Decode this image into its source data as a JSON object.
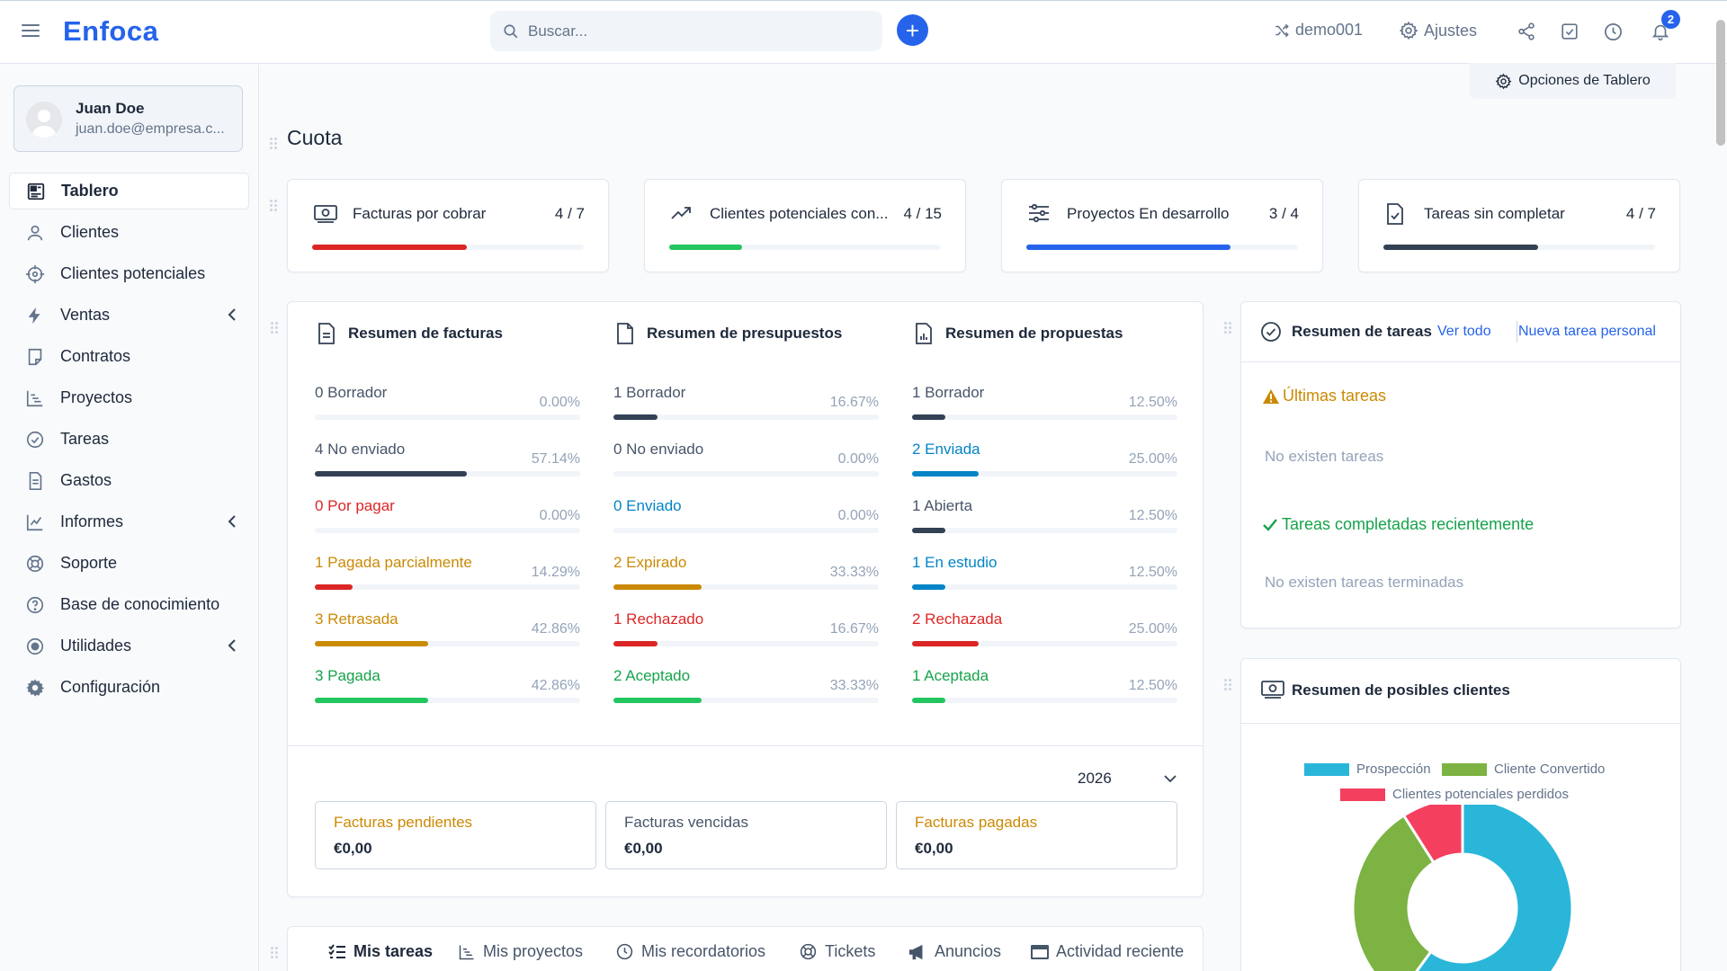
{
  "app": {
    "logo": "Enfoca"
  },
  "search": {
    "placeholder": "Buscar..."
  },
  "topbar": {
    "user_switch": "demo001",
    "settings": "Ajustes",
    "notifications_count": "2"
  },
  "user": {
    "name": "Juan Doe",
    "email": "juan.doe@empresa.c..."
  },
  "sidebar": {
    "items": [
      {
        "label": "Tablero",
        "icon": "dashboard-icon",
        "active": true
      },
      {
        "label": "Clientes",
        "icon": "user-icon"
      },
      {
        "label": "Clientes potenciales",
        "icon": "crosshair-icon"
      },
      {
        "label": "Ventas",
        "icon": "bolt-icon",
        "has_submenu": true
      },
      {
        "label": "Contratos",
        "icon": "contract-icon"
      },
      {
        "label": "Proyectos",
        "icon": "chart-steps-icon"
      },
      {
        "label": "Tareas",
        "icon": "check-circle-icon"
      },
      {
        "label": "Gastos",
        "icon": "document-icon"
      },
      {
        "label": "Informes",
        "icon": "line-chart-icon",
        "has_submenu": true
      },
      {
        "label": "Soporte",
        "icon": "lifebuoy-icon"
      },
      {
        "label": "Base de conocimiento",
        "icon": "question-circle-icon"
      },
      {
        "label": "Utilidades",
        "icon": "radio-icon",
        "has_submenu": true
      },
      {
        "label": "Configuración",
        "icon": "gear-icon"
      }
    ]
  },
  "dashboard": {
    "options_button": "Opciones de Tablero",
    "quota_title": "Cuota",
    "quota_cards": [
      {
        "label": "Facturas por cobrar",
        "count": "4 / 7",
        "fraction": 0.571,
        "color": "#dc2626"
      },
      {
        "label": "Clientes potenciales con...",
        "count": "4 / 15",
        "fraction": 0.267,
        "color": "#22c55e"
      },
      {
        "label": "Proyectos En desarrollo",
        "count": "3 / 4",
        "fraction": 0.75,
        "color": "#2563eb"
      },
      {
        "label": "Tareas sin completar",
        "count": "4 / 7",
        "fraction": 0.571,
        "color": "#334155"
      }
    ]
  },
  "summaries": {
    "invoices": {
      "title": "Resumen de facturas",
      "rows": [
        {
          "label": "0 Borrador",
          "pct": "0.00%",
          "fraction": 0.0,
          "color": "#334155",
          "text_color": "#475569"
        },
        {
          "label": "4 No enviado",
          "pct": "57.14%",
          "fraction": 0.5714,
          "color": "#334155",
          "text_color": "#475569"
        },
        {
          "label": "0 Por pagar",
          "pct": "0.00%",
          "fraction": 0.0,
          "color": "#dc2626",
          "text_color": "#dc2626"
        },
        {
          "label": "1 Pagada parcialmente",
          "pct": "14.29%",
          "fraction": 0.1429,
          "color": "#dc2626",
          "text_color": "#ca8a04"
        },
        {
          "label": "3 Retrasada",
          "pct": "42.86%",
          "fraction": 0.4286,
          "color": "#ca8a04",
          "text_color": "#ca8a04"
        },
        {
          "label": "3 Pagada",
          "pct": "42.86%",
          "fraction": 0.4286,
          "color": "#22c55e",
          "text_color": "#16a34a"
        }
      ]
    },
    "estimates": {
      "title": "Resumen de presupuestos",
      "rows": [
        {
          "label": "1 Borrador",
          "pct": "16.67%",
          "fraction": 0.1667,
          "color": "#334155",
          "text_color": "#475569"
        },
        {
          "label": "0 No enviado",
          "pct": "0.00%",
          "fraction": 0.0,
          "color": "#334155",
          "text_color": "#475569"
        },
        {
          "label": "0 Enviado",
          "pct": "0.00%",
          "fraction": 0.0,
          "color": "#0284c7",
          "text_color": "#0284c7"
        },
        {
          "label": "2 Expirado",
          "pct": "33.33%",
          "fraction": 0.3333,
          "color": "#ca8a04",
          "text_color": "#ca8a04"
        },
        {
          "label": "1 Rechazado",
          "pct": "16.67%",
          "fraction": 0.1667,
          "color": "#dc2626",
          "text_color": "#dc2626"
        },
        {
          "label": "2 Aceptado",
          "pct": "33.33%",
          "fraction": 0.3333,
          "color": "#22c55e",
          "text_color": "#16a34a"
        }
      ]
    },
    "proposals": {
      "title": "Resumen de propuestas",
      "rows": [
        {
          "label": "1 Borrador",
          "pct": "12.50%",
          "fraction": 0.125,
          "color": "#334155",
          "text_color": "#475569"
        },
        {
          "label": "2 Enviada",
          "pct": "25.00%",
          "fraction": 0.25,
          "color": "#0284c7",
          "text_color": "#0284c7"
        },
        {
          "label": "1 Abierta",
          "pct": "12.50%",
          "fraction": 0.125,
          "color": "#334155",
          "text_color": "#475569"
        },
        {
          "label": "1 En estudio",
          "pct": "12.50%",
          "fraction": 0.125,
          "color": "#0284c7",
          "text_color": "#0284c7"
        },
        {
          "label": "2 Rechazada",
          "pct": "25.00%",
          "fraction": 0.25,
          "color": "#dc2626",
          "text_color": "#dc2626"
        },
        {
          "label": "1 Aceptada",
          "pct": "12.50%",
          "fraction": 0.125,
          "color": "#22c55e",
          "text_color": "#16a34a"
        }
      ]
    },
    "year": "2026",
    "invoice_totals": [
      {
        "label": "Facturas pendientes",
        "value": "€0,00",
        "color": "#ca8a04"
      },
      {
        "label": "Facturas vencidas",
        "value": "€0,00",
        "color": "#475569"
      },
      {
        "label": "Facturas pagadas",
        "value": "€0,00",
        "color": "#ca8a04"
      }
    ]
  },
  "tasks_panel": {
    "title": "Resumen de tareas",
    "view_all": "Ver todo",
    "new_task": "Nueva tarea personal",
    "latest_heading": "Últimas tareas",
    "latest_empty": "No existen tareas",
    "completed_heading": "Tareas completadas recientemente",
    "completed_empty": "No existen tareas terminadas"
  },
  "leads_panel": {
    "title": "Resumen de posibles clientes"
  },
  "chart_data": {
    "type": "pie",
    "categories": [
      "Prospección",
      "Cliente Convertido",
      "Clientes potenciales perdidos"
    ],
    "values": [
      60,
      31,
      9
    ],
    "colors": [
      "#29b6d9",
      "#7cb342",
      "#f43f5e"
    ],
    "legend": "top"
  },
  "bottom_tabs": [
    {
      "label": "Mis tareas",
      "icon": "task-list-icon",
      "active": true
    },
    {
      "label": "Mis proyectos",
      "icon": "chart-steps-icon"
    },
    {
      "label": "Mis recordatorios",
      "icon": "clock-icon"
    },
    {
      "label": "Tickets",
      "icon": "lifebuoy-icon"
    },
    {
      "label": "Anuncios",
      "icon": "megaphone-icon"
    },
    {
      "label": "Actividad reciente",
      "icon": "window-icon"
    }
  ]
}
